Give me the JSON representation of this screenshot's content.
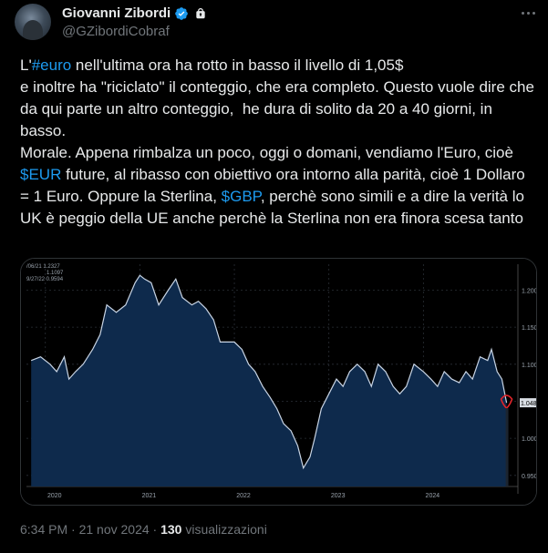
{
  "author": {
    "name": "Giovanni Zibordi",
    "handle": "@GZibordiCobraf",
    "avatar_icon": "avatar-photo",
    "verified_color": "#1d9bf0"
  },
  "tweet": {
    "p1a": "L'",
    "tag1": "#euro",
    "p1b": " nell'ultima ora ha rotto in basso il livello di 1,05$\ne inoltre ha \"riciclato\" il conteggio, che era completo. Questo vuole dire che da qui parte un altro conteggio,  he dura di solito da 20 a 40 giorni, in basso.\nMorale. Appena rimbalza un poco, oggi o domani, vendiamo l'Euro, cioè ",
    "tag2": "$EUR",
    "p2": " future, al ribasso con obiettivo ora intorno alla parità, cioè 1 Dollaro = 1 Euro. Oppure la Sterlina, ",
    "tag3": "$GBP",
    "p3": ", perchè sono simili e a dire la verità lo UK è peggio della UE anche perchè la Sterlina non era finora scesa tanto",
    "link_color": "#1d9bf0"
  },
  "footer": {
    "time": "6:34 PM · 21 nov 2024 · ",
    "views_count": "130",
    "views_label": " visualizzazioni"
  },
  "chart_data": {
    "type": "area",
    "info_lines": [
      "/06/21 1.2327",
      "1.1097",
      "9/27/22 0.9594"
    ],
    "y_ticks": [
      1.2,
      1.15,
      1.1,
      1.05,
      1.0,
      0.95
    ],
    "y_tick_labels": [
      "1.200",
      "1.150",
      "1.100",
      "1.050",
      "1.000",
      "0.950"
    ],
    "ylim": [
      0.935,
      1.235
    ],
    "x_labels": [
      "2020",
      "2021",
      "2022",
      "2023",
      "2024"
    ],
    "x_label_positions": [
      2020.0,
      2021.0,
      2022.0,
      2023.0,
      2024.0
    ],
    "xlim": [
      2019.8,
      2025.0
    ],
    "last_label": "1.048",
    "series": [
      {
        "x": [
          2019.85,
          2019.95,
          2020.05,
          2020.12,
          2020.2,
          2020.25,
          2020.32,
          2020.4,
          2020.5,
          2020.58,
          2020.65,
          2020.75,
          2020.85,
          2020.95,
          2021.0,
          2021.05,
          2021.12,
          2021.2,
          2021.3,
          2021.38,
          2021.45,
          2021.55,
          2021.62,
          2021.7,
          2021.78,
          2021.85,
          2021.92,
          2022.0,
          2022.08,
          2022.15,
          2022.22,
          2022.3,
          2022.38,
          2022.45,
          2022.52,
          2022.6,
          2022.67,
          2022.73,
          2022.8,
          2022.85,
          2022.92,
          2023.0,
          2023.08,
          2023.15,
          2023.22,
          2023.3,
          2023.38,
          2023.45,
          2023.52,
          2023.6,
          2023.68,
          2023.75,
          2023.82,
          2023.9,
          2024.0,
          2024.08,
          2024.15,
          2024.22,
          2024.3,
          2024.38,
          2024.45,
          2024.52,
          2024.6,
          2024.68,
          2024.72,
          2024.78,
          2024.83,
          2024.88
        ],
        "values": [
          1.105,
          1.11,
          1.1,
          1.09,
          1.11,
          1.08,
          1.09,
          1.1,
          1.12,
          1.14,
          1.18,
          1.17,
          1.18,
          1.21,
          1.22,
          1.215,
          1.21,
          1.18,
          1.2,
          1.215,
          1.19,
          1.18,
          1.185,
          1.175,
          1.16,
          1.13,
          1.13,
          1.13,
          1.12,
          1.1,
          1.09,
          1.07,
          1.055,
          1.04,
          1.02,
          1.01,
          0.99,
          0.96,
          0.975,
          1.0,
          1.04,
          1.06,
          1.08,
          1.07,
          1.09,
          1.1,
          1.09,
          1.07,
          1.1,
          1.09,
          1.07,
          1.06,
          1.07,
          1.1,
          1.09,
          1.08,
          1.07,
          1.09,
          1.08,
          1.075,
          1.09,
          1.08,
          1.11,
          1.105,
          1.12,
          1.09,
          1.08,
          1.048
        ]
      }
    ],
    "line_color": "#c8d4e4",
    "fill_color": "#0e2a4c",
    "marker_color": "#e0242a"
  }
}
